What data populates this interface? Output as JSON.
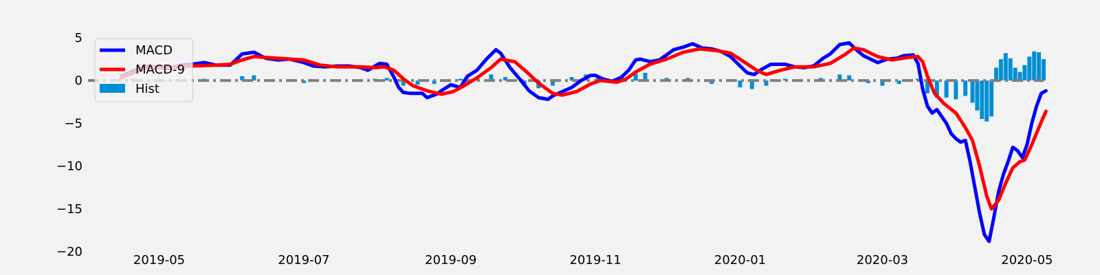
{
  "chart_data": {
    "type": "line",
    "title": "",
    "xlabel": "",
    "ylabel": "",
    "x_range": [
      "2019-04-01",
      "2020-05-08"
    ],
    "ylim": [
      -20,
      7
    ],
    "grid": false,
    "legend_placement": "top-left",
    "x_ticks": [
      "2019-05",
      "2019-07",
      "2019-09",
      "2019-11",
      "2020-01",
      "2020-03",
      "2020-05"
    ],
    "y_ticks": [
      5,
      0,
      -5,
      -10,
      -15,
      -20
    ],
    "zero_line": {
      "value": 0,
      "style": "dash-dot",
      "color": "#808080"
    },
    "legend": [
      {
        "label": "MACD",
        "color": "#0000ff",
        "kind": "line"
      },
      {
        "label": "MACD-9",
        "color": "#ff0000",
        "kind": "line"
      },
      {
        "label": "Hist",
        "color": "#008fd5",
        "kind": "bar"
      }
    ],
    "series": [
      {
        "name": "MACD",
        "color": "#0000ff",
        "points": [
          [
            "2019-04-15",
            0.5
          ],
          [
            "2019-04-25",
            1.7
          ],
          [
            "2019-05-05",
            1.4
          ],
          [
            "2019-05-10",
            1.8
          ],
          [
            "2019-05-15",
            1.9
          ],
          [
            "2019-05-20",
            2.1
          ],
          [
            "2019-05-25",
            1.8
          ],
          [
            "2019-05-31",
            1.8
          ],
          [
            "2019-06-05",
            3.1
          ],
          [
            "2019-06-10",
            3.3
          ],
          [
            "2019-06-15",
            2.6
          ],
          [
            "2019-06-20",
            2.4
          ],
          [
            "2019-06-25",
            2.5
          ],
          [
            "2019-07-01",
            2.1
          ],
          [
            "2019-07-05",
            1.7
          ],
          [
            "2019-07-10",
            1.6
          ],
          [
            "2019-07-15",
            1.7
          ],
          [
            "2019-07-20",
            1.7
          ],
          [
            "2019-07-25",
            1.5
          ],
          [
            "2019-07-28",
            1.2
          ],
          [
            "2019-08-02",
            2.0
          ],
          [
            "2019-08-05",
            1.9
          ],
          [
            "2019-08-08",
            0.4
          ],
          [
            "2019-08-10",
            -0.8
          ],
          [
            "2019-08-12",
            -1.4
          ],
          [
            "2019-08-15",
            -1.5
          ],
          [
            "2019-08-20",
            -1.5
          ],
          [
            "2019-08-22",
            -2.0
          ],
          [
            "2019-08-26",
            -1.6
          ],
          [
            "2019-08-28",
            -1.2
          ],
          [
            "2019-09-01",
            -0.5
          ],
          [
            "2019-09-05",
            -0.8
          ],
          [
            "2019-09-08",
            0.5
          ],
          [
            "2019-09-12",
            1.2
          ],
          [
            "2019-09-16",
            2.5
          ],
          [
            "2019-09-20",
            3.6
          ],
          [
            "2019-09-22",
            3.2
          ],
          [
            "2019-09-26",
            1.5
          ],
          [
            "2019-09-30",
            0.2
          ],
          [
            "2019-10-04",
            -1.2
          ],
          [
            "2019-10-08",
            -2.0
          ],
          [
            "2019-10-12",
            -2.2
          ],
          [
            "2019-10-14",
            -1.8
          ],
          [
            "2019-10-18",
            -1.3
          ],
          [
            "2019-10-22",
            -0.8
          ],
          [
            "2019-10-26",
            0.0
          ],
          [
            "2019-10-30",
            0.6
          ],
          [
            "2019-11-01",
            0.6
          ],
          [
            "2019-11-04",
            0.2
          ],
          [
            "2019-11-08",
            -0.1
          ],
          [
            "2019-11-12",
            0.4
          ],
          [
            "2019-11-15",
            1.2
          ],
          [
            "2019-11-18",
            2.4
          ],
          [
            "2019-11-20",
            2.5
          ],
          [
            "2019-11-24",
            2.2
          ],
          [
            "2019-11-28",
            2.4
          ],
          [
            "2019-12-01",
            3.0
          ],
          [
            "2019-12-04",
            3.6
          ],
          [
            "2019-12-08",
            3.9
          ],
          [
            "2019-12-12",
            4.3
          ],
          [
            "2019-12-16",
            3.8
          ],
          [
            "2019-12-20",
            3.7
          ],
          [
            "2019-12-24",
            3.4
          ],
          [
            "2019-12-28",
            2.8
          ],
          [
            "2020-01-01",
            1.7
          ],
          [
            "2020-01-04",
            0.9
          ],
          [
            "2020-01-07",
            0.7
          ],
          [
            "2020-01-10",
            1.3
          ],
          [
            "2020-01-14",
            1.9
          ],
          [
            "2020-01-20",
            1.9
          ],
          [
            "2020-01-24",
            1.6
          ],
          [
            "2020-01-28",
            1.5
          ],
          [
            "2020-02-01",
            1.7
          ],
          [
            "2020-02-05",
            2.6
          ],
          [
            "2020-02-08",
            3.1
          ],
          [
            "2020-02-12",
            4.2
          ],
          [
            "2020-02-16",
            4.4
          ],
          [
            "2020-02-19",
            3.6
          ],
          [
            "2020-02-22",
            2.9
          ],
          [
            "2020-02-25",
            2.5
          ],
          [
            "2020-02-28",
            2.1
          ],
          [
            "2020-03-03",
            2.5
          ],
          [
            "2020-03-07",
            2.6
          ],
          [
            "2020-03-10",
            2.9
          ],
          [
            "2020-03-14",
            3.0
          ],
          [
            "2020-03-16",
            2.0
          ],
          [
            "2020-03-18",
            -1.0
          ],
          [
            "2020-03-20",
            -3.0
          ],
          [
            "2020-03-22",
            -3.8
          ],
          [
            "2020-03-24",
            -3.4
          ],
          [
            "2020-03-26",
            -4.2
          ],
          [
            "2020-03-28",
            -5.0
          ],
          [
            "2020-03-30",
            -6.2
          ],
          [
            "2020-04-01",
            -6.8
          ],
          [
            "2020-04-03",
            -7.2
          ],
          [
            "2020-04-05",
            -7.0
          ],
          [
            "2020-04-07",
            -9.5
          ],
          [
            "2020-04-09",
            -12.5
          ],
          [
            "2020-04-11",
            -15.5
          ],
          [
            "2020-04-13",
            -18.0
          ],
          [
            "2020-04-15",
            -18.8
          ],
          [
            "2020-04-17",
            -16.0
          ],
          [
            "2020-04-19",
            -13.0
          ],
          [
            "2020-04-21",
            -11.0
          ],
          [
            "2020-04-23",
            -9.5
          ],
          [
            "2020-04-25",
            -7.8
          ],
          [
            "2020-04-27",
            -8.2
          ],
          [
            "2020-04-29",
            -9.0
          ],
          [
            "2020-05-01",
            -7.5
          ],
          [
            "2020-05-03",
            -5.0
          ],
          [
            "2020-05-05",
            -3.0
          ],
          [
            "2020-05-07",
            -1.5
          ],
          [
            "2020-05-09",
            -1.2
          ]
        ]
      },
      {
        "name": "MACD-9",
        "color": "#ff0000",
        "points": [
          [
            "2019-04-15",
            0.3
          ],
          [
            "2019-04-25",
            1.5
          ],
          [
            "2019-05-05",
            1.5
          ],
          [
            "2019-05-15",
            1.7
          ],
          [
            "2019-05-25",
            1.8
          ],
          [
            "2019-05-31",
            1.9
          ],
          [
            "2019-06-05",
            2.4
          ],
          [
            "2019-06-10",
            2.8
          ],
          [
            "2019-06-20",
            2.6
          ],
          [
            "2019-07-01",
            2.4
          ],
          [
            "2019-07-08",
            1.8
          ],
          [
            "2019-07-15",
            1.6
          ],
          [
            "2019-07-25",
            1.6
          ],
          [
            "2019-07-31",
            1.5
          ],
          [
            "2019-08-04",
            1.6
          ],
          [
            "2019-08-08",
            1.2
          ],
          [
            "2019-08-12",
            0.2
          ],
          [
            "2019-08-16",
            -0.6
          ],
          [
            "2019-08-22",
            -1.2
          ],
          [
            "2019-08-28",
            -1.6
          ],
          [
            "2019-09-02",
            -1.3
          ],
          [
            "2019-09-06",
            -0.7
          ],
          [
            "2019-09-12",
            0.3
          ],
          [
            "2019-09-18",
            1.5
          ],
          [
            "2019-09-22",
            2.5
          ],
          [
            "2019-09-28",
            2.2
          ],
          [
            "2019-10-03",
            1.0
          ],
          [
            "2019-10-08",
            -0.3
          ],
          [
            "2019-10-14",
            -1.5
          ],
          [
            "2019-10-18",
            -1.7
          ],
          [
            "2019-10-24",
            -1.3
          ],
          [
            "2019-10-30",
            -0.4
          ],
          [
            "2019-11-03",
            0.0
          ],
          [
            "2019-11-10",
            -0.2
          ],
          [
            "2019-11-14",
            0.2
          ],
          [
            "2019-11-18",
            1.0
          ],
          [
            "2019-11-24",
            1.9
          ],
          [
            "2019-12-01",
            2.5
          ],
          [
            "2019-12-08",
            3.3
          ],
          [
            "2019-12-15",
            3.7
          ],
          [
            "2019-12-22",
            3.5
          ],
          [
            "2019-12-28",
            3.2
          ],
          [
            "2020-01-02",
            2.3
          ],
          [
            "2020-01-08",
            1.2
          ],
          [
            "2020-01-12",
            0.7
          ],
          [
            "2020-01-18",
            1.2
          ],
          [
            "2020-01-24",
            1.6
          ],
          [
            "2020-02-01",
            1.6
          ],
          [
            "2020-02-08",
            2.0
          ],
          [
            "2020-02-14",
            3.0
          ],
          [
            "2020-02-18",
            3.8
          ],
          [
            "2020-02-22",
            3.6
          ],
          [
            "2020-02-28",
            2.8
          ],
          [
            "2020-03-05",
            2.4
          ],
          [
            "2020-03-12",
            2.7
          ],
          [
            "2020-03-16",
            2.8
          ],
          [
            "2020-03-18",
            2.2
          ],
          [
            "2020-03-20",
            0.5
          ],
          [
            "2020-03-23",
            -1.5
          ],
          [
            "2020-03-27",
            -2.7
          ],
          [
            "2020-04-01",
            -3.8
          ],
          [
            "2020-04-05",
            -5.5
          ],
          [
            "2020-04-08",
            -7.0
          ],
          [
            "2020-04-11",
            -10.0
          ],
          [
            "2020-04-14",
            -13.5
          ],
          [
            "2020-04-16",
            -15.0
          ],
          [
            "2020-04-19",
            -14.0
          ],
          [
            "2020-04-22",
            -12.0
          ],
          [
            "2020-04-25",
            -10.2
          ],
          [
            "2020-04-28",
            -9.5
          ],
          [
            "2020-04-30",
            -9.3
          ],
          [
            "2020-05-03",
            -7.5
          ],
          [
            "2020-05-06",
            -5.5
          ],
          [
            "2020-05-09",
            -3.6
          ]
        ]
      },
      {
        "name": "Hist",
        "color": "#008fd5",
        "type": "bar",
        "points": [
          [
            "2019-04-20",
            0.2
          ],
          [
            "2019-05-05",
            -0.1
          ],
          [
            "2019-05-20",
            0.2
          ],
          [
            "2019-06-05",
            0.5
          ],
          [
            "2019-06-10",
            0.6
          ],
          [
            "2019-06-18",
            0.1
          ],
          [
            "2019-07-01",
            -0.3
          ],
          [
            "2019-07-15",
            0.1
          ],
          [
            "2019-07-31",
            0.2
          ],
          [
            "2019-08-05",
            0.3
          ],
          [
            "2019-08-12",
            -0.6
          ],
          [
            "2019-08-18",
            -0.5
          ],
          [
            "2019-08-25",
            -0.4
          ],
          [
            "2019-09-05",
            0.2
          ],
          [
            "2019-09-12",
            0.4
          ],
          [
            "2019-09-18",
            0.7
          ],
          [
            "2019-09-24",
            0.4
          ],
          [
            "2019-10-02",
            -0.6
          ],
          [
            "2019-10-08",
            -0.9
          ],
          [
            "2019-10-14",
            -0.6
          ],
          [
            "2019-10-22",
            0.4
          ],
          [
            "2019-10-28",
            0.7
          ],
          [
            "2019-11-02",
            0.5
          ],
          [
            "2019-11-10",
            0.1
          ],
          [
            "2019-11-18",
            0.8
          ],
          [
            "2019-11-22",
            0.9
          ],
          [
            "2019-12-01",
            0.3
          ],
          [
            "2019-12-10",
            0.3
          ],
          [
            "2019-12-20",
            -0.4
          ],
          [
            "2020-01-01",
            -0.8
          ],
          [
            "2020-01-06",
            -1.0
          ],
          [
            "2020-01-12",
            -0.6
          ],
          [
            "2020-01-20",
            0.2
          ],
          [
            "2020-02-04",
            0.3
          ],
          [
            "2020-02-12",
            0.7
          ],
          [
            "2020-02-16",
            0.6
          ],
          [
            "2020-02-24",
            -0.3
          ],
          [
            "2020-03-01",
            -0.6
          ],
          [
            "2020-03-08",
            -0.4
          ],
          [
            "2020-03-16",
            0.2
          ],
          [
            "2020-03-20",
            -1.5
          ],
          [
            "2020-03-24",
            -2.0
          ],
          [
            "2020-03-28",
            -2.0
          ],
          [
            "2020-04-01",
            -2.2
          ],
          [
            "2020-04-05",
            -1.8
          ],
          [
            "2020-04-08",
            -2.6
          ],
          [
            "2020-04-10",
            -3.5
          ],
          [
            "2020-04-12",
            -4.5
          ],
          [
            "2020-04-14",
            -4.8
          ],
          [
            "2020-04-16",
            -4.2
          ],
          [
            "2020-04-18",
            1.5
          ],
          [
            "2020-04-20",
            2.5
          ],
          [
            "2020-04-22",
            3.2
          ],
          [
            "2020-04-24",
            2.6
          ],
          [
            "2020-04-26",
            1.5
          ],
          [
            "2020-04-28",
            1.0
          ],
          [
            "2020-04-30",
            1.8
          ],
          [
            "2020-05-02",
            2.8
          ],
          [
            "2020-05-04",
            3.4
          ],
          [
            "2020-05-06",
            3.3
          ],
          [
            "2020-05-08",
            2.5
          ]
        ]
      }
    ]
  }
}
